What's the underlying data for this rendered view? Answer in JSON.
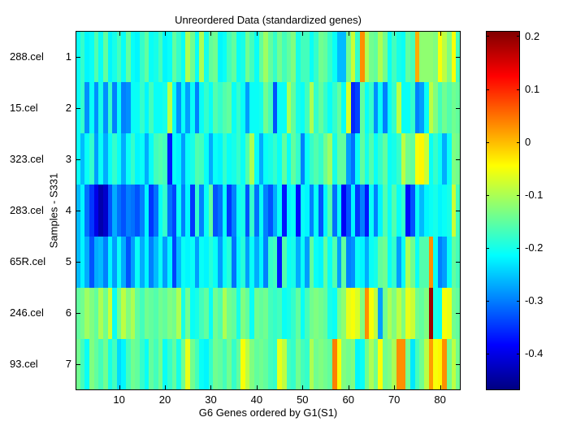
{
  "chart_data": {
    "type": "heatmap",
    "title": "Unreordered Data (standardized genes)",
    "xlabel": "G6 Genes ordered by G1(S1)",
    "ylabel": "Samples - S331",
    "colormap": "jet",
    "clim": [
      -0.47,
      0.21
    ],
    "n_cols": 84,
    "x_ticks": [
      10,
      20,
      30,
      40,
      50,
      60,
      70,
      80
    ],
    "y_ticks": [
      1,
      2,
      3,
      4,
      5,
      6,
      7
    ],
    "row_labels": [
      "288.cel",
      "15.cel",
      "323.cel",
      "283.cel",
      "65R.cel",
      "246.cel",
      "93.cel"
    ],
    "colorbar_ticks": [
      0.2,
      0.1,
      0,
      -0.1,
      -0.2,
      -0.3,
      -0.4
    ],
    "colorbar_tick_labels": [
      "0.2",
      "0.1",
      "0",
      "-0.1",
      "-0.2",
      "-0.3",
      "-0.4"
    ],
    "grid": false,
    "values": [
      [
        -0.21,
        -0.18,
        -0.22,
        -0.21,
        -0.16,
        -0.21,
        -0.15,
        -0.22,
        -0.2,
        -0.17,
        -0.21,
        -0.15,
        -0.21,
        -0.22,
        -0.18,
        -0.15,
        -0.21,
        -0.2,
        -0.17,
        -0.22,
        -0.21,
        -0.15,
        -0.18,
        -0.21,
        -0.1,
        -0.14,
        -0.21,
        -0.1,
        -0.2,
        -0.15,
        -0.14,
        -0.22,
        -0.21,
        -0.17,
        -0.15,
        -0.21,
        -0.2,
        -0.14,
        -0.17,
        -0.21,
        -0.15,
        -0.11,
        -0.15,
        -0.18,
        -0.14,
        -0.17,
        -0.15,
        -0.13,
        -0.2,
        -0.17,
        -0.17,
        -0.21,
        -0.18,
        -0.14,
        -0.15,
        -0.18,
        -0.21,
        -0.26,
        -0.26,
        -0.14,
        -0.08,
        -0.18,
        0.03,
        -0.1,
        -0.14,
        -0.15,
        -0.1,
        -0.14,
        -0.21,
        -0.17,
        -0.2,
        -0.21,
        -0.15,
        -0.17,
        0.01,
        -0.12,
        -0.12,
        -0.12,
        -0.13,
        -0.05,
        -0.09,
        -0.13,
        -0.05,
        -0.17
      ],
      [
        -0.21,
        -0.18,
        -0.29,
        -0.21,
        -0.29,
        -0.2,
        -0.29,
        -0.18,
        -0.3,
        -0.21,
        -0.3,
        -0.29,
        -0.21,
        -0.21,
        -0.18,
        -0.22,
        -0.17,
        -0.21,
        -0.21,
        -0.2,
        -0.09,
        -0.21,
        -0.29,
        -0.21,
        -0.28,
        -0.21,
        -0.3,
        -0.21,
        -0.18,
        -0.21,
        -0.16,
        -0.18,
        -0.16,
        -0.15,
        -0.21,
        -0.18,
        -0.21,
        -0.28,
        -0.21,
        -0.21,
        -0.2,
        -0.14,
        -0.17,
        -0.33,
        -0.21,
        -0.21,
        -0.1,
        -0.15,
        -0.2,
        -0.21,
        -0.17,
        -0.1,
        -0.18,
        -0.15,
        -0.18,
        -0.21,
        -0.18,
        -0.15,
        -0.21,
        -0.07,
        -0.36,
        -0.34,
        -0.15,
        -0.21,
        -0.18,
        -0.29,
        -0.21,
        -0.3,
        -0.21,
        -0.18,
        -0.09,
        -0.21,
        -0.21,
        -0.18,
        -0.3,
        -0.28,
        -0.21,
        -0.09,
        -0.13,
        -0.17,
        -0.14,
        -0.16,
        -0.14,
        -0.15
      ],
      [
        -0.21,
        -0.26,
        -0.21,
        -0.18,
        -0.28,
        -0.21,
        -0.27,
        -0.21,
        -0.18,
        -0.21,
        -0.27,
        -0.21,
        -0.18,
        -0.22,
        -0.21,
        -0.27,
        -0.21,
        -0.17,
        -0.16,
        -0.17,
        -0.37,
        -0.21,
        -0.22,
        -0.28,
        -0.21,
        -0.2,
        -0.16,
        -0.17,
        -0.21,
        -0.27,
        -0.21,
        -0.22,
        -0.18,
        -0.21,
        -0.2,
        -0.18,
        -0.21,
        -0.16,
        -0.1,
        -0.21,
        -0.27,
        -0.21,
        -0.2,
        -0.18,
        -0.21,
        -0.15,
        -0.21,
        -0.15,
        -0.18,
        -0.3,
        -0.21,
        -0.18,
        -0.16,
        -0.18,
        -0.14,
        -0.11,
        -0.2,
        -0.15,
        -0.15,
        -0.28,
        -0.31,
        -0.21,
        -0.15,
        -0.2,
        -0.16,
        -0.21,
        -0.18,
        -0.15,
        -0.21,
        -0.2,
        -0.18,
        -0.09,
        -0.14,
        -0.15,
        -0.05,
        -0.04,
        -0.08,
        -0.21,
        -0.18,
        -0.21,
        -0.27,
        -0.21,
        -0.13,
        -0.14
      ],
      [
        -0.26,
        -0.22,
        -0.31,
        -0.35,
        -0.4,
        -0.44,
        -0.42,
        -0.33,
        -0.27,
        -0.31,
        -0.33,
        -0.3,
        -0.31,
        -0.33,
        -0.3,
        -0.22,
        -0.35,
        -0.31,
        -0.21,
        -0.18,
        -0.31,
        -0.34,
        -0.21,
        -0.3,
        -0.22,
        -0.35,
        -0.18,
        -0.3,
        -0.21,
        -0.15,
        -0.33,
        -0.31,
        -0.21,
        -0.35,
        -0.3,
        -0.21,
        -0.2,
        -0.33,
        -0.18,
        -0.31,
        -0.21,
        -0.3,
        -0.33,
        -0.27,
        -0.21,
        -0.37,
        -0.22,
        -0.21,
        -0.38,
        -0.21,
        -0.22,
        -0.3,
        -0.21,
        -0.33,
        -0.22,
        -0.16,
        -0.31,
        -0.21,
        -0.39,
        -0.33,
        -0.22,
        -0.35,
        -0.3,
        -0.37,
        -0.21,
        -0.3,
        -0.22,
        -0.16,
        -0.21,
        -0.16,
        -0.21,
        -0.18,
        -0.38,
        -0.33,
        -0.21,
        -0.26,
        -0.22,
        -0.21,
        -0.2,
        -0.22,
        -0.21,
        -0.2,
        -0.08,
        -0.17
      ],
      [
        -0.26,
        -0.22,
        -0.27,
        -0.33,
        -0.27,
        -0.26,
        -0.3,
        -0.22,
        -0.28,
        -0.21,
        -0.27,
        -0.33,
        -0.28,
        -0.21,
        -0.27,
        -0.22,
        -0.3,
        -0.26,
        -0.21,
        -0.28,
        -0.22,
        -0.34,
        -0.26,
        -0.21,
        -0.22,
        -0.21,
        -0.28,
        -0.21,
        -0.22,
        -0.19,
        -0.21,
        -0.28,
        -0.21,
        -0.19,
        -0.31,
        -0.22,
        -0.19,
        -0.28,
        -0.21,
        -0.27,
        -0.22,
        -0.3,
        -0.18,
        -0.17,
        -0.37,
        -0.16,
        -0.21,
        -0.2,
        -0.27,
        -0.21,
        -0.28,
        -0.15,
        -0.21,
        -0.22,
        -0.15,
        -0.21,
        -0.16,
        -0.28,
        -0.15,
        -0.3,
        -0.29,
        -0.21,
        -0.22,
        -0.27,
        -0.21,
        -0.2,
        -0.15,
        -0.14,
        -0.21,
        -0.18,
        -0.28,
        -0.21,
        -0.1,
        -0.14,
        -0.21,
        -0.16,
        -0.16,
        0.03,
        -0.21,
        -0.3,
        -0.28,
        -0.21,
        -0.15,
        -0.17
      ],
      [
        -0.15,
        -0.14,
        -0.11,
        -0.13,
        -0.15,
        -0.1,
        -0.14,
        -0.08,
        -0.21,
        -0.14,
        -0.09,
        -0.13,
        -0.1,
        -0.15,
        -0.17,
        -0.14,
        -0.15,
        -0.16,
        -0.14,
        -0.15,
        -0.13,
        -0.14,
        -0.1,
        -0.2,
        -0.14,
        -0.21,
        -0.2,
        -0.17,
        -0.15,
        -0.21,
        -0.14,
        -0.16,
        -0.1,
        -0.14,
        -0.15,
        -0.2,
        -0.13,
        -0.15,
        -0.21,
        -0.14,
        -0.15,
        -0.14,
        -0.17,
        -0.18,
        -0.17,
        -0.21,
        -0.2,
        -0.18,
        -0.15,
        -0.21,
        -0.17,
        -0.14,
        -0.13,
        -0.14,
        -0.15,
        -0.2,
        -0.21,
        -0.14,
        -0.12,
        -0.06,
        -0.05,
        -0.07,
        -0.13,
        0.03,
        -0.05,
        -0.09,
        -0.28,
        -0.14,
        -0.1,
        -0.13,
        -0.09,
        -0.13,
        -0.06,
        -0.08,
        -0.14,
        -0.15,
        -0.13,
        0.19,
        -0.2,
        -0.21,
        -0.05,
        -0.06,
        -0.14,
        -0.15
      ],
      [
        -0.14,
        -0.17,
        -0.21,
        -0.13,
        -0.15,
        -0.17,
        -0.14,
        -0.2,
        -0.17,
        -0.24,
        -0.22,
        -0.17,
        -0.14,
        -0.15,
        -0.18,
        -0.21,
        -0.15,
        -0.17,
        -0.14,
        -0.21,
        -0.18,
        -0.15,
        -0.2,
        -0.14,
        -0.06,
        -0.14,
        -0.17,
        -0.21,
        -0.22,
        -0.18,
        -0.14,
        -0.15,
        -0.17,
        -0.14,
        -0.18,
        -0.15,
        -0.05,
        -0.09,
        -0.13,
        -0.15,
        -0.14,
        -0.15,
        -0.17,
        -0.18,
        -0.06,
        -0.09,
        -0.17,
        -0.18,
        -0.14,
        -0.17,
        -0.18,
        -0.1,
        -0.14,
        -0.13,
        -0.14,
        -0.15,
        0.04,
        -0.05,
        -0.13,
        -0.14,
        -0.13,
        -0.22,
        -0.21,
        -0.14,
        -0.1,
        -0.14,
        -0.05,
        -0.14,
        -0.13,
        -0.1,
        0.03,
        0.03,
        -0.14,
        -0.23,
        -0.17,
        -0.14,
        -0.09,
        0.02,
        -0.05,
        -0.04,
        0.03,
        -0.14,
        -0.09,
        -0.14
      ]
    ]
  }
}
